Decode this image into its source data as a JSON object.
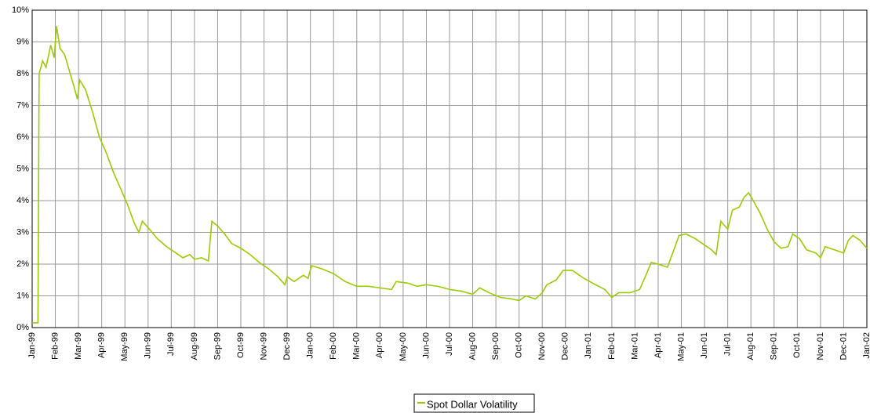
{
  "chart_data": {
    "type": "line",
    "x": [
      0,
      0.25,
      0.3,
      0.45,
      0.6,
      0.8,
      0.95,
      1.05,
      1.2,
      1.4,
      1.6,
      1.8,
      1.95,
      2.05,
      2.3,
      2.6,
      2.9,
      3.2,
      3.5,
      3.8,
      4.1,
      4.4,
      4.6,
      4.75,
      5.0,
      5.4,
      5.8,
      6.2,
      6.5,
      6.8,
      7.0,
      7.3,
      7.6,
      7.75,
      8.0,
      8.3,
      8.6,
      9.0,
      9.4,
      9.8,
      10.2,
      10.6,
      10.9,
      11.0,
      11.3,
      11.7,
      11.9,
      12.05,
      12.5,
      13.0,
      13.5,
      14.0,
      14.5,
      15.0,
      15.5,
      15.7,
      16.2,
      16.6,
      17.0,
      17.5,
      18.0,
      18.5,
      19.0,
      19.3,
      19.7,
      20.2,
      20.7,
      21.0,
      21.3,
      21.7,
      22.0,
      22.2,
      22.6,
      22.9,
      23.3,
      23.8,
      24.3,
      24.7,
      25.0,
      25.3,
      25.8,
      26.2,
      26.5,
      26.7,
      27.0,
      27.4,
      27.6,
      27.9,
      28.2,
      28.6,
      29.0,
      29.3,
      29.5,
      29.7,
      30.0,
      30.2,
      30.5,
      30.7,
      30.9,
      31.1,
      31.4,
      31.7,
      32.0,
      32.3,
      32.6,
      32.8,
      33.1,
      33.4,
      33.8,
      34.0,
      34.2,
      34.6,
      35.0,
      35.2,
      35.4,
      35.7,
      36.0
    ],
    "series": [
      {
        "name": "Spot Dollar Volatility",
        "color": "#99cc00",
        "values": [
          0.15,
          0.15,
          8.0,
          8.4,
          8.2,
          8.9,
          8.5,
          9.5,
          8.8,
          8.6,
          8.1,
          7.6,
          7.2,
          7.8,
          7.5,
          6.8,
          6.0,
          5.5,
          4.9,
          4.4,
          3.9,
          3.3,
          3.0,
          3.35,
          3.15,
          2.8,
          2.55,
          2.35,
          2.2,
          2.3,
          2.15,
          2.2,
          2.1,
          3.35,
          3.2,
          2.95,
          2.65,
          2.5,
          2.3,
          2.05,
          1.85,
          1.6,
          1.35,
          1.6,
          1.45,
          1.65,
          1.55,
          1.95,
          1.85,
          1.7,
          1.45,
          1.3,
          1.3,
          1.25,
          1.2,
          1.45,
          1.4,
          1.3,
          1.35,
          1.3,
          1.2,
          1.15,
          1.05,
          1.25,
          1.1,
          0.95,
          0.9,
          0.85,
          1.0,
          0.9,
          1.1,
          1.35,
          1.5,
          1.8,
          1.8,
          1.55,
          1.35,
          1.2,
          0.95,
          1.1,
          1.1,
          1.2,
          1.7,
          2.05,
          2.0,
          1.9,
          2.3,
          2.9,
          2.95,
          2.8,
          2.6,
          2.45,
          2.3,
          3.35,
          3.1,
          3.7,
          3.8,
          4.1,
          4.25,
          4.0,
          3.6,
          3.1,
          2.7,
          2.5,
          2.55,
          2.95,
          2.8,
          2.45,
          2.35,
          2.2,
          2.55,
          2.45,
          2.35,
          2.75,
          2.9,
          2.75,
          2.5
        ]
      }
    ],
    "xlim": [
      0,
      36
    ],
    "xticks": [
      {
        "value": 0,
        "label": "Jan-99"
      },
      {
        "value": 1,
        "label": "Feb-99"
      },
      {
        "value": 2,
        "label": "Mar-99"
      },
      {
        "value": 3,
        "label": "Apr-99"
      },
      {
        "value": 4,
        "label": "May-99"
      },
      {
        "value": 5,
        "label": "Jun-99"
      },
      {
        "value": 6,
        "label": "Jul-99"
      },
      {
        "value": 7,
        "label": "Aug-99"
      },
      {
        "value": 8,
        "label": "Sep-99"
      },
      {
        "value": 9,
        "label": "Oct-99"
      },
      {
        "value": 10,
        "label": "Nov-99"
      },
      {
        "value": 11,
        "label": "Dec-99"
      },
      {
        "value": 12,
        "label": "Jan-00"
      },
      {
        "value": 13,
        "label": "Feb-00"
      },
      {
        "value": 14,
        "label": "Mar-00"
      },
      {
        "value": 15,
        "label": "Apr-00"
      },
      {
        "value": 16,
        "label": "May-00"
      },
      {
        "value": 17,
        "label": "Jun-00"
      },
      {
        "value": 18,
        "label": "Jul-00"
      },
      {
        "value": 19,
        "label": "Aug-00"
      },
      {
        "value": 20,
        "label": "Sep-00"
      },
      {
        "value": 21,
        "label": "Oct-00"
      },
      {
        "value": 22,
        "label": "Nov-00"
      },
      {
        "value": 23,
        "label": "Dec-00"
      },
      {
        "value": 24,
        "label": "Jan-01"
      },
      {
        "value": 25,
        "label": "Feb-01"
      },
      {
        "value": 26,
        "label": "Mar-01"
      },
      {
        "value": 27,
        "label": "Apr-01"
      },
      {
        "value": 28,
        "label": "May-01"
      },
      {
        "value": 29,
        "label": "Jun-01"
      },
      {
        "value": 30,
        "label": "Jul-01"
      },
      {
        "value": 31,
        "label": "Aug-01"
      },
      {
        "value": 32,
        "label": "Sep-01"
      },
      {
        "value": 33,
        "label": "Oct-01"
      },
      {
        "value": 34,
        "label": "Nov-01"
      },
      {
        "value": 35,
        "label": "Dec-01"
      },
      {
        "value": 36,
        "label": "Jan-02"
      }
    ],
    "ylim": [
      0,
      10
    ],
    "yticks": [
      {
        "value": 0,
        "label": "0%"
      },
      {
        "value": 1,
        "label": "1%"
      },
      {
        "value": 2,
        "label": "2%"
      },
      {
        "value": 3,
        "label": "3%"
      },
      {
        "value": 4,
        "label": "4%"
      },
      {
        "value": 5,
        "label": "5%"
      },
      {
        "value": 6,
        "label": "6%"
      },
      {
        "value": 7,
        "label": "7%"
      },
      {
        "value": 8,
        "label": "8%"
      },
      {
        "value": 9,
        "label": "9%"
      },
      {
        "value": 10,
        "label": "10%"
      }
    ],
    "grid": true,
    "legend": "bottom"
  }
}
